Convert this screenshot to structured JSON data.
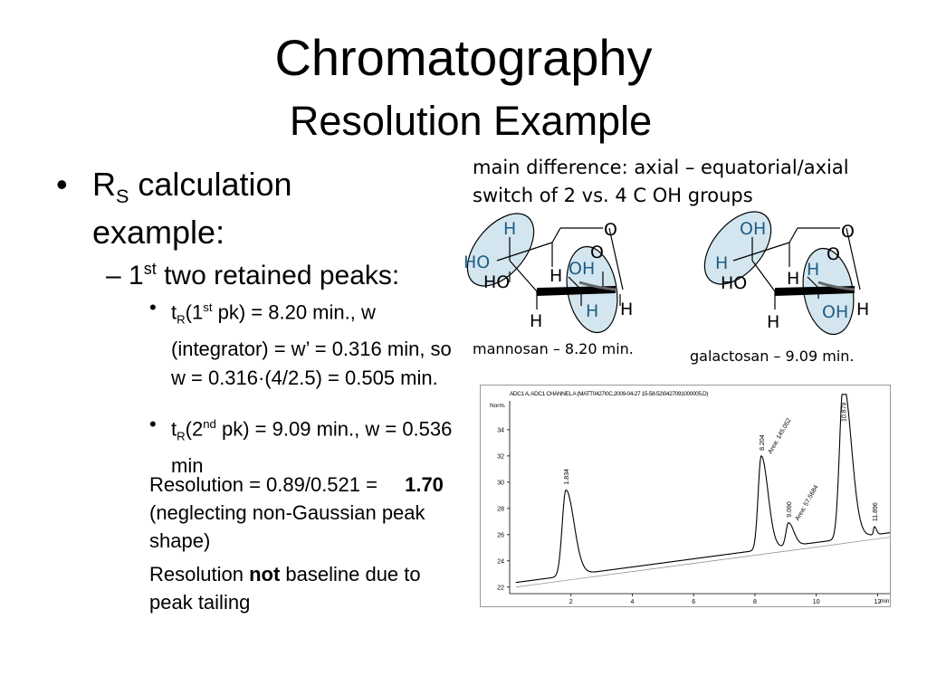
{
  "slide": {
    "title": "Chromatography",
    "subtitle": "Resolution Example"
  },
  "left": {
    "b1_pre": "R",
    "b1_sub": "S",
    "b1_post": " calculation example:",
    "b2_pre": "– 1",
    "b2_sup": "st",
    "b2_post": " two retained peaks:",
    "b3a_pre": "t",
    "b3a_sub": "R",
    "b3a_mid": "(1",
    "b3a_sup": "st",
    "b3a_post": " pk) = 8.20 min., w (integrator) = w’ = 0.316 min, so w = 0.316·(4/2.5) = 0.505 min.",
    "b3b_pre": "t",
    "b3b_sub": "R",
    "b3b_mid": "(2",
    "b3b_sup": "nd",
    "b3b_post": " pk) = 9.09 min., w = 0.536 min",
    "res1_pre": "Resolution = 0.89/0.521 = ",
    "res1_bold": "1.70",
    "res1_post": "  (neglecting non-Gaussian peak shape)",
    "res2_pre": "Resolution ",
    "res2_bold": "not",
    "res2_post": " baseline due to peak tailing"
  },
  "right": {
    "note_line1": "main difference: axial – equatorial/axial",
    "note_line2": "switch of 2 vs. 4 C OH groups",
    "mannosan_caption": "mannosan – 8.20 min.",
    "galactosan_caption": "galactosan – 9.09 min.",
    "mannosan_labels": {
      "h_top": "H",
      "o_ring": "O",
      "ho_left": "HO",
      "o_bridge": "O",
      "h_mid": "H",
      "oh": "OH",
      "ho_low": "HO",
      "h_right": "H",
      "h_low": "H",
      "h_bottom": "H"
    },
    "galactosan_labels": {
      "oh_top": "OH",
      "o_ring": "O",
      "h_left": "H",
      "o_bridge": "O",
      "h_mid": "H",
      "h_mid2": "H",
      "ho_low": "HO",
      "oh_low": "OH",
      "h_right": "H",
      "h_bottom": "H"
    }
  },
  "colors": {
    "highlight_fill": "#d3e6f0",
    "highlight_stroke": "#000000",
    "trace": "#000000"
  },
  "chart_data": {
    "type": "line",
    "title": "ADC1 A, ADC1 CHANNEL A (MATT0427\\0C.2009-04-27 15-58-52\\0427091000005.D)",
    "ylabel": "Norm.",
    "xlabel": "min",
    "xlim": [
      0,
      12.4
    ],
    "ylim": [
      21.5,
      36.2
    ],
    "x_ticks": [
      2,
      4,
      6,
      8,
      10,
      12
    ],
    "y_ticks": [
      22,
      24,
      26,
      28,
      30,
      32,
      34
    ],
    "baseline": {
      "start": [
        0.2,
        22.0
      ],
      "end": [
        12.4,
        25.8
      ]
    },
    "peaks": [
      {
        "t": 1.834,
        "height": 29.4,
        "label": "1.834"
      },
      {
        "t": 8.204,
        "height": 32.0,
        "label": "8.204",
        "area_label": "Area: 145.052"
      },
      {
        "t": 9.09,
        "height": 26.9,
        "label": "9.090",
        "area_label": "Area: 57.5684"
      },
      {
        "t": 10.879,
        "height": 37.5,
        "label": "10.879"
      },
      {
        "t": 11.896,
        "height": 26.6,
        "label": "11.896"
      }
    ]
  }
}
